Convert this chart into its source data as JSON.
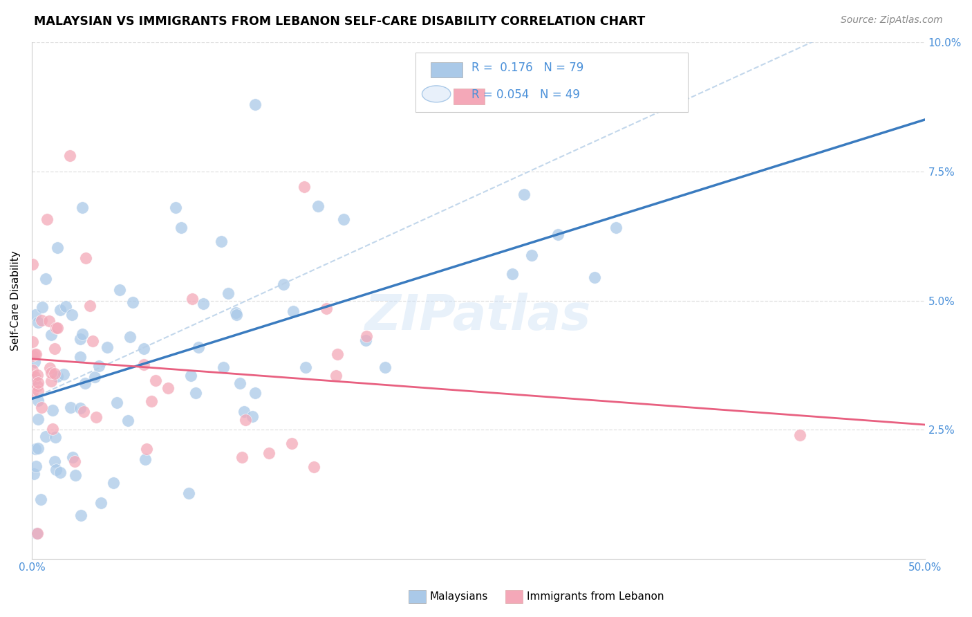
{
  "title": "MALAYSIAN VS IMMIGRANTS FROM LEBANON SELF-CARE DISABILITY CORRELATION CHART",
  "source": "Source: ZipAtlas.com",
  "ylabel": "Self-Care Disability",
  "xlim": [
    0.0,
    0.5
  ],
  "ylim": [
    0.0,
    0.1
  ],
  "blue_color": "#aac9e8",
  "pink_color": "#f4a8b8",
  "blue_line_color": "#3a7bbf",
  "pink_line_color": "#e86080",
  "blue_dash_color": "#b0cce8",
  "grid_color": "#e0e0e0",
  "background_color": "#ffffff",
  "watermark": "ZIPatlas",
  "R_blue": 0.176,
  "R_pink": 0.054,
  "N_blue": 79,
  "N_pink": 49,
  "legend_blue_text": "R =  0.176   N = 79",
  "legend_pink_text": "R = 0.054   N = 49",
  "legend_text_color": "#4a90d9",
  "bottom_legend_labels": [
    "Malaysians",
    "Immigrants from Lebanon"
  ]
}
